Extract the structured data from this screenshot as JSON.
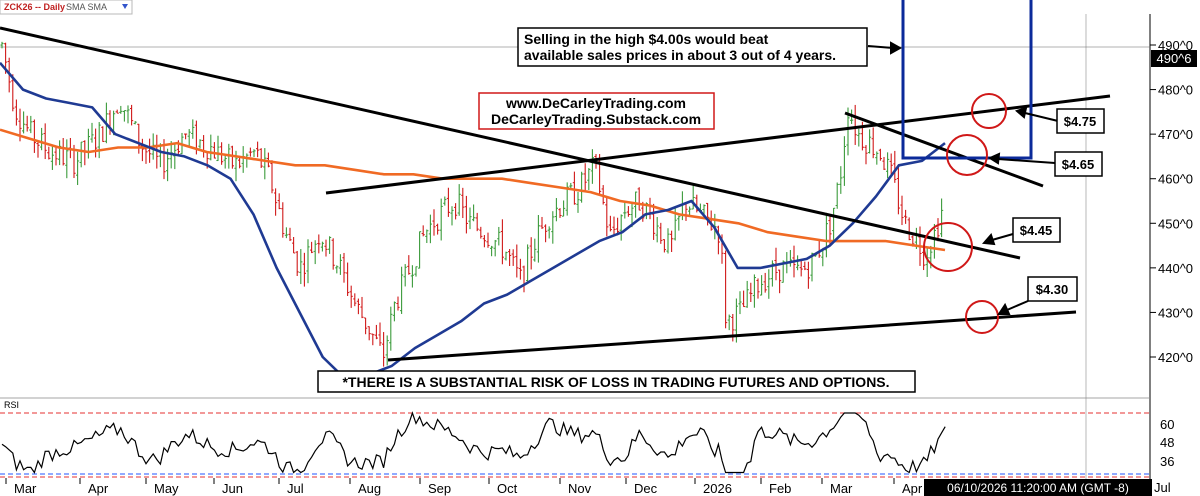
{
  "header": {
    "symbol": "ZCK26 -- Daily",
    "indicator": "SMA SMA"
  },
  "chart_data": {
    "type": "candlestick",
    "colors": {
      "up": "#3a9a3a",
      "down": "#d01818",
      "sma_short": "#1f3a93",
      "sma_long": "#f06a24",
      "trendline": "#000000",
      "box": "#0b2a9a",
      "circle": "#d01818",
      "rsi_bounds": "#e53030",
      "rsi_lower": "#2255ff"
    },
    "months": [
      "Mar",
      "Apr",
      "May",
      "Jun",
      "Jul",
      "Aug",
      "Sep",
      "Oct",
      "Nov",
      "Dec",
      "2026",
      "Feb",
      "Mar",
      "Apr"
    ],
    "price_axis": {
      "ticks": [
        "420^0",
        "430^0",
        "440^0",
        "450^0",
        "460^0",
        "470^0",
        "480^0",
        "490^0"
      ],
      "current": "490^6",
      "ylim": [
        414,
        504
      ]
    },
    "rsi_axis": {
      "label": "RSI",
      "ticks": [
        "36",
        "48",
        "60"
      ],
      "overbought": 70,
      "oversold": 30
    },
    "sma_short": [
      486,
      480,
      478,
      477,
      476,
      470,
      468,
      466,
      465,
      463,
      460,
      452,
      440,
      430,
      420,
      415,
      416,
      418,
      422,
      425,
      428,
      432,
      434,
      437,
      440,
      443,
      446,
      448,
      452,
      453,
      455,
      449,
      440,
      440,
      441,
      442,
      445,
      450,
      456,
      463,
      464,
      468
    ],
    "sma_long": [
      471,
      469,
      467,
      466,
      467,
      467,
      468,
      466,
      465,
      464,
      463,
      463,
      462,
      461,
      461,
      460,
      460,
      460,
      459,
      458,
      457,
      455,
      454,
      452,
      451,
      450,
      448,
      447,
      446,
      446,
      446,
      445,
      444
    ],
    "callouts": {
      "main": "Selling in the high $4.00s would beat available sales prices in about 3 out of 4 years.",
      "site1": "www.DeCarleyTrading.com",
      "site2": "DeCarleyTrading.Substack.com",
      "disclaimer": "*THERE IS A SUBSTANTIAL RISK OF LOSS IN TRADING FUTURES AND OPTIONS.",
      "price_475": "$4.75",
      "price_465": "$4.65",
      "price_445": "$4.45",
      "price_430": "$4.30"
    },
    "levels": [
      475,
      465,
      445,
      430
    ]
  },
  "footer": {
    "timestamp": "06/10/2026 11:20:00 AM (GMT -8)",
    "trailing": "Jul"
  }
}
